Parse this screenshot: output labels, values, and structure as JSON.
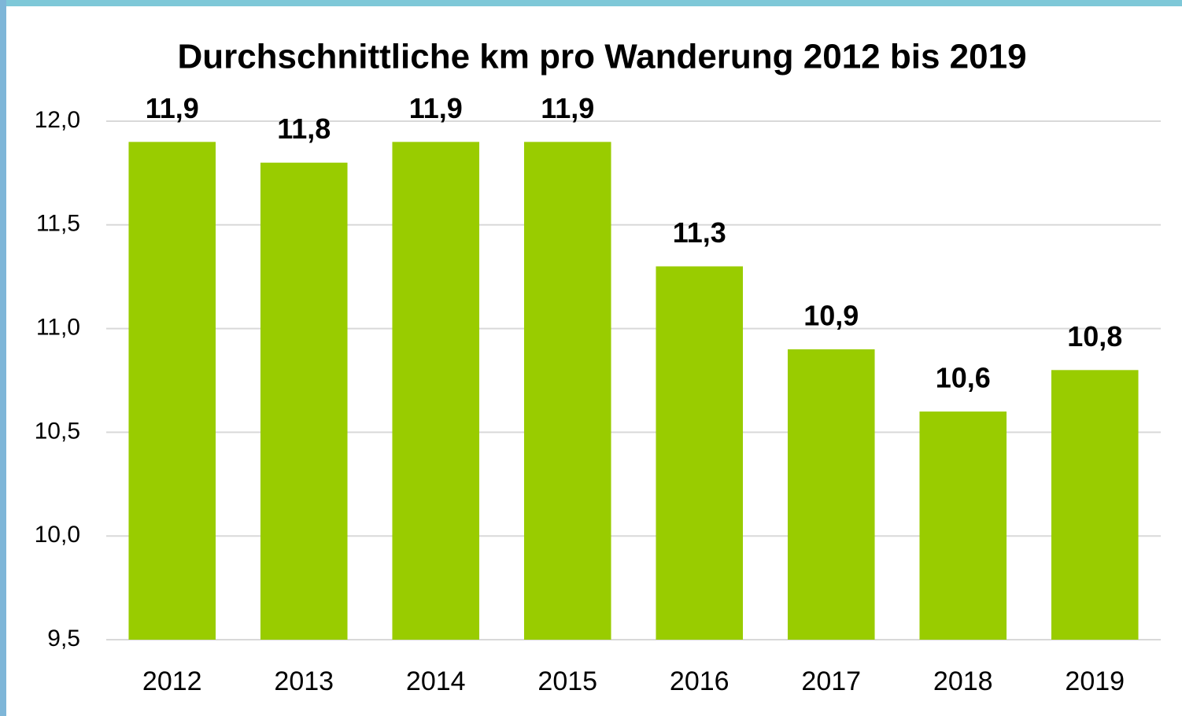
{
  "chart_data": {
    "type": "bar",
    "title": "Durchschnittliche km pro Wanderung 2012 bis 2019",
    "categories": [
      "2012",
      "2013",
      "2014",
      "2015",
      "2016",
      "2017",
      "2018",
      "2019"
    ],
    "values": [
      11.9,
      11.8,
      11.9,
      11.9,
      11.3,
      10.9,
      10.6,
      10.8
    ],
    "value_labels": [
      "11,9",
      "11,8",
      "11,9",
      "11,9",
      "11,3",
      "10,9",
      "10,6",
      "10,8"
    ],
    "color": "#99cc00",
    "ylim": [
      9.5,
      12.0
    ],
    "yticks": [
      {
        "value": 9.5,
        "label": "9,5"
      },
      {
        "value": 10,
        "label": "10,0"
      },
      {
        "value": 10.5,
        "label": "10,5"
      },
      {
        "value": 11,
        "label": "11,0"
      },
      {
        "value": 11.5,
        "label": "11,5"
      },
      {
        "value": 12,
        "label": "12,0"
      }
    ],
    "grid": true
  }
}
